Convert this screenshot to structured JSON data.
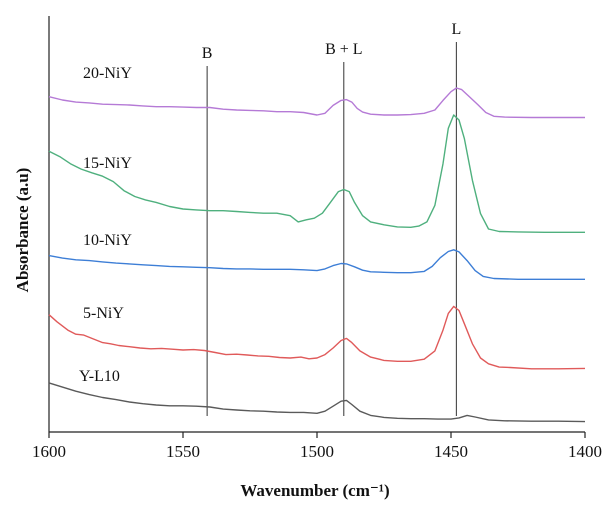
{
  "chart_data": {
    "type": "line",
    "title": "",
    "xlabel": "Wavenumber (cm⁻¹)",
    "ylabel": "Absorbance (a.u)",
    "xlim": [
      1600,
      1400
    ],
    "x_reversed": true,
    "ylim": [
      0,
      10
    ],
    "y_ticks_shown": false,
    "grid": false,
    "x_ticks": [
      1600,
      1550,
      1500,
      1450,
      1400
    ],
    "x_tick_labels": [
      "1600",
      "1550",
      "1500",
      "1450",
      "1400"
    ],
    "reference_lines": [
      {
        "label": "B",
        "x": 1541
      },
      {
        "label": "B + L",
        "x": 1490
      },
      {
        "label": "L",
        "x": 1448
      }
    ],
    "series": [
      {
        "name": "20-NiY",
        "color": "#b57ad6",
        "points": [
          [
            1600,
            8.06
          ],
          [
            1595,
            7.98
          ],
          [
            1590,
            7.93
          ],
          [
            1585,
            7.91
          ],
          [
            1580,
            7.88
          ],
          [
            1575,
            7.87
          ],
          [
            1570,
            7.86
          ],
          [
            1565,
            7.84
          ],
          [
            1560,
            7.82
          ],
          [
            1555,
            7.82
          ],
          [
            1550,
            7.81
          ],
          [
            1545,
            7.8
          ],
          [
            1540,
            7.8
          ],
          [
            1535,
            7.76
          ],
          [
            1530,
            7.74
          ],
          [
            1525,
            7.73
          ],
          [
            1520,
            7.72
          ],
          [
            1515,
            7.7
          ],
          [
            1510,
            7.7
          ],
          [
            1505,
            7.68
          ],
          [
            1500,
            7.62
          ],
          [
            1497,
            7.66
          ],
          [
            1494,
            7.85
          ],
          [
            1491,
            7.97
          ],
          [
            1489,
            7.99
          ],
          [
            1487,
            7.93
          ],
          [
            1485,
            7.78
          ],
          [
            1483,
            7.69
          ],
          [
            1480,
            7.64
          ],
          [
            1475,
            7.62
          ],
          [
            1470,
            7.62
          ],
          [
            1465,
            7.63
          ],
          [
            1460,
            7.66
          ],
          [
            1456,
            7.74
          ],
          [
            1453,
            7.97
          ],
          [
            1450,
            8.18
          ],
          [
            1448,
            8.27
          ],
          [
            1446,
            8.23
          ],
          [
            1443,
            8.05
          ],
          [
            1440,
            7.87
          ],
          [
            1437,
            7.68
          ],
          [
            1434,
            7.59
          ],
          [
            1430,
            7.57
          ],
          [
            1420,
            7.56
          ],
          [
            1410,
            7.56
          ],
          [
            1400,
            7.56
          ]
        ]
      },
      {
        "name": "15-NiY",
        "color": "#4fb07e",
        "points": [
          [
            1600,
            6.75
          ],
          [
            1596,
            6.62
          ],
          [
            1592,
            6.45
          ],
          [
            1588,
            6.32
          ],
          [
            1584,
            6.23
          ],
          [
            1580,
            6.15
          ],
          [
            1576,
            6.02
          ],
          [
            1572,
            5.8
          ],
          [
            1568,
            5.66
          ],
          [
            1564,
            5.58
          ],
          [
            1560,
            5.52
          ],
          [
            1555,
            5.42
          ],
          [
            1550,
            5.36
          ],
          [
            1545,
            5.34
          ],
          [
            1540,
            5.32
          ],
          [
            1535,
            5.32
          ],
          [
            1530,
            5.3
          ],
          [
            1525,
            5.28
          ],
          [
            1520,
            5.26
          ],
          [
            1515,
            5.26
          ],
          [
            1510,
            5.2
          ],
          [
            1507,
            5.05
          ],
          [
            1504,
            5.1
          ],
          [
            1501,
            5.14
          ],
          [
            1498,
            5.26
          ],
          [
            1495,
            5.52
          ],
          [
            1492,
            5.78
          ],
          [
            1490,
            5.83
          ],
          [
            1488,
            5.78
          ],
          [
            1486,
            5.52
          ],
          [
            1483,
            5.2
          ],
          [
            1480,
            5.05
          ],
          [
            1475,
            4.98
          ],
          [
            1470,
            4.93
          ],
          [
            1465,
            4.92
          ],
          [
            1462,
            4.95
          ],
          [
            1459,
            5.05
          ],
          [
            1456,
            5.45
          ],
          [
            1453,
            6.45
          ],
          [
            1451,
            7.3
          ],
          [
            1449,
            7.62
          ],
          [
            1447,
            7.5
          ],
          [
            1445,
            7.05
          ],
          [
            1442,
            6.05
          ],
          [
            1439,
            5.25
          ],
          [
            1436,
            4.88
          ],
          [
            1432,
            4.82
          ],
          [
            1425,
            4.81
          ],
          [
            1415,
            4.8
          ],
          [
            1400,
            4.8
          ]
        ]
      },
      {
        "name": "10-NiY",
        "color": "#3d7ed6",
        "points": [
          [
            1600,
            4.24
          ],
          [
            1595,
            4.18
          ],
          [
            1590,
            4.14
          ],
          [
            1585,
            4.12
          ],
          [
            1580,
            4.09
          ],
          [
            1575,
            4.06
          ],
          [
            1570,
            4.04
          ],
          [
            1565,
            4.02
          ],
          [
            1560,
            4.0
          ],
          [
            1555,
            3.98
          ],
          [
            1550,
            3.97
          ],
          [
            1545,
            3.96
          ],
          [
            1540,
            3.95
          ],
          [
            1535,
            3.93
          ],
          [
            1530,
            3.92
          ],
          [
            1525,
            3.92
          ],
          [
            1520,
            3.91
          ],
          [
            1515,
            3.91
          ],
          [
            1510,
            3.91
          ],
          [
            1505,
            3.9
          ],
          [
            1500,
            3.88
          ],
          [
            1497,
            3.92
          ],
          [
            1494,
            4.0
          ],
          [
            1491,
            4.05
          ],
          [
            1489,
            4.04
          ],
          [
            1486,
            3.97
          ],
          [
            1483,
            3.89
          ],
          [
            1480,
            3.85
          ],
          [
            1475,
            3.84
          ],
          [
            1470,
            3.83
          ],
          [
            1465,
            3.83
          ],
          [
            1460,
            3.86
          ],
          [
            1457,
            3.98
          ],
          [
            1454,
            4.19
          ],
          [
            1451,
            4.34
          ],
          [
            1449,
            4.38
          ],
          [
            1447,
            4.33
          ],
          [
            1444,
            4.12
          ],
          [
            1441,
            3.88
          ],
          [
            1438,
            3.74
          ],
          [
            1434,
            3.69
          ],
          [
            1425,
            3.67
          ],
          [
            1415,
            3.67
          ],
          [
            1400,
            3.67
          ]
        ]
      },
      {
        "name": "5-NiY",
        "color": "#e05a5a",
        "points": [
          [
            1600,
            2.82
          ],
          [
            1597,
            2.65
          ],
          [
            1593,
            2.45
          ],
          [
            1590,
            2.35
          ],
          [
            1587,
            2.33
          ],
          [
            1584,
            2.25
          ],
          [
            1580,
            2.15
          ],
          [
            1577,
            2.12
          ],
          [
            1574,
            2.08
          ],
          [
            1570,
            2.05
          ],
          [
            1566,
            2.02
          ],
          [
            1562,
            2.0
          ],
          [
            1558,
            2.01
          ],
          [
            1554,
            1.99
          ],
          [
            1550,
            1.97
          ],
          [
            1546,
            1.98
          ],
          [
            1542,
            1.96
          ],
          [
            1538,
            1.91
          ],
          [
            1534,
            1.86
          ],
          [
            1530,
            1.87
          ],
          [
            1526,
            1.85
          ],
          [
            1522,
            1.83
          ],
          [
            1518,
            1.82
          ],
          [
            1514,
            1.79
          ],
          [
            1510,
            1.78
          ],
          [
            1506,
            1.8
          ],
          [
            1503,
            1.76
          ],
          [
            1500,
            1.78
          ],
          [
            1497,
            1.86
          ],
          [
            1494,
            2.02
          ],
          [
            1491,
            2.2
          ],
          [
            1489,
            2.25
          ],
          [
            1487,
            2.15
          ],
          [
            1484,
            1.95
          ],
          [
            1480,
            1.8
          ],
          [
            1475,
            1.72
          ],
          [
            1470,
            1.7
          ],
          [
            1465,
            1.7
          ],
          [
            1460,
            1.75
          ],
          [
            1456,
            1.95
          ],
          [
            1453,
            2.45
          ],
          [
            1451,
            2.85
          ],
          [
            1449,
            3.02
          ],
          [
            1447,
            2.92
          ],
          [
            1445,
            2.6
          ],
          [
            1442,
            2.12
          ],
          [
            1439,
            1.78
          ],
          [
            1436,
            1.64
          ],
          [
            1432,
            1.56
          ],
          [
            1428,
            1.55
          ],
          [
            1420,
            1.52
          ],
          [
            1410,
            1.52
          ],
          [
            1400,
            1.53
          ]
        ]
      },
      {
        "name": "Y-L10",
        "color": "#5a5a5a",
        "points": [
          [
            1600,
            1.18
          ],
          [
            1595,
            1.08
          ],
          [
            1590,
            0.98
          ],
          [
            1585,
            0.9
          ],
          [
            1580,
            0.83
          ],
          [
            1575,
            0.78
          ],
          [
            1570,
            0.72
          ],
          [
            1565,
            0.68
          ],
          [
            1560,
            0.65
          ],
          [
            1555,
            0.63
          ],
          [
            1550,
            0.63
          ],
          [
            1545,
            0.62
          ],
          [
            1540,
            0.6
          ],
          [
            1535,
            0.55
          ],
          [
            1530,
            0.53
          ],
          [
            1525,
            0.51
          ],
          [
            1520,
            0.5
          ],
          [
            1515,
            0.48
          ],
          [
            1510,
            0.47
          ],
          [
            1505,
            0.47
          ],
          [
            1500,
            0.45
          ],
          [
            1497,
            0.5
          ],
          [
            1494,
            0.62
          ],
          [
            1491,
            0.74
          ],
          [
            1489,
            0.76
          ],
          [
            1487,
            0.66
          ],
          [
            1484,
            0.5
          ],
          [
            1480,
            0.4
          ],
          [
            1475,
            0.35
          ],
          [
            1470,
            0.33
          ],
          [
            1465,
            0.32
          ],
          [
            1460,
            0.32
          ],
          [
            1455,
            0.31
          ],
          [
            1450,
            0.31
          ],
          [
            1447,
            0.34
          ],
          [
            1444,
            0.4
          ],
          [
            1441,
            0.36
          ],
          [
            1436,
            0.29
          ],
          [
            1430,
            0.27
          ],
          [
            1420,
            0.26
          ],
          [
            1410,
            0.26
          ],
          [
            1400,
            0.25
          ]
        ]
      }
    ],
    "series_label_order": [
      "20-NiY",
      "15-NiY",
      "10-NiY",
      "5-NiY",
      "Y-L10"
    ]
  }
}
